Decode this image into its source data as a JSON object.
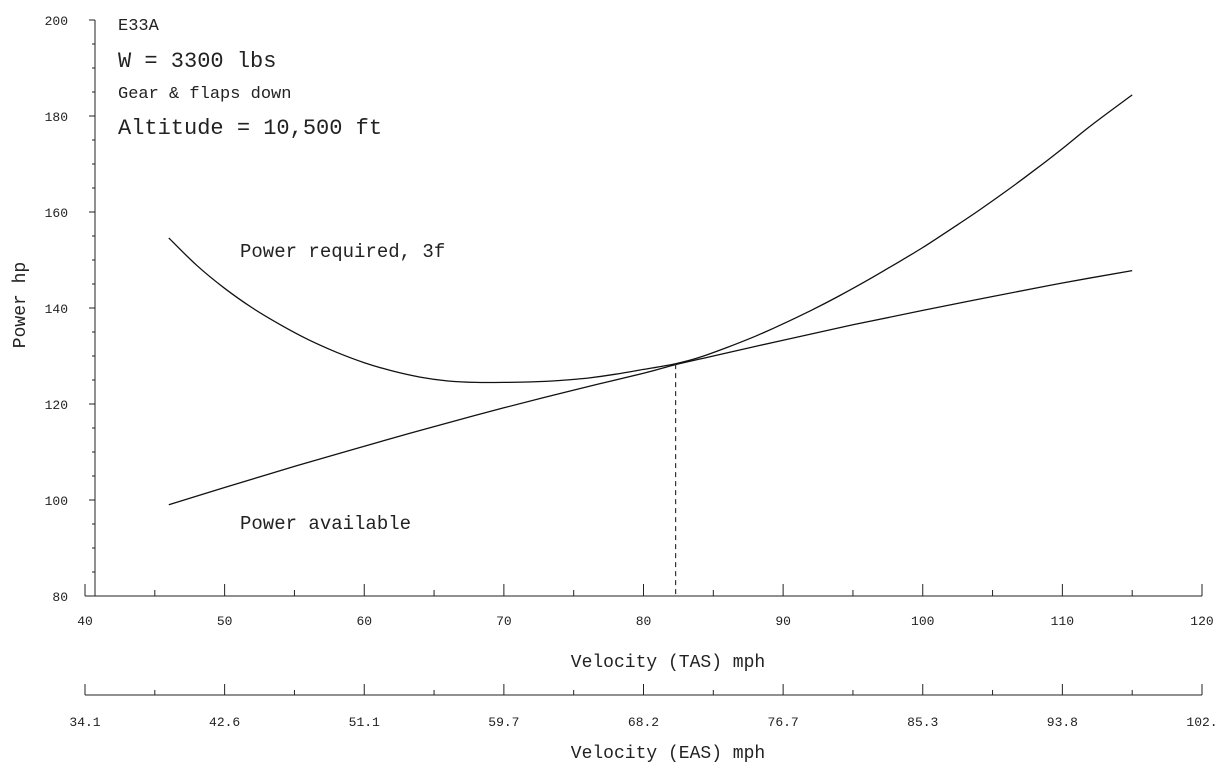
{
  "chart_data": {
    "type": "line",
    "title": "",
    "annotations": [
      "E33A",
      "W = 3300 lbs",
      "Gear & flaps down",
      "Altitude = 10,500 ft"
    ],
    "xlabel": "Velocity (TAS) mph",
    "x2label": "Velocity (EAS) mph",
    "ylabel": "Power hp",
    "xlim": [
      40,
      120
    ],
    "ylim": [
      80,
      200
    ],
    "x_ticks": [
      "40",
      "50",
      "60",
      "70",
      "80",
      "90",
      "100",
      "110",
      "120"
    ],
    "y_ticks": [
      "80",
      "100",
      "120",
      "140",
      "160",
      "180",
      "200"
    ],
    "x2_ticks": [
      "34.1",
      "42.6",
      "51.1",
      "59.7",
      "68.2",
      "76.7",
      "85.3",
      "93.8",
      "102."
    ],
    "grid": false,
    "series": [
      {
        "name": "Power required, 3f",
        "x": [
          46,
          48,
          50,
          52,
          54,
          56,
          58,
          60,
          62,
          64,
          66,
          68,
          70,
          72,
          74,
          76,
          78,
          80,
          82.3,
          84,
          86,
          88,
          90,
          92,
          94,
          96,
          98,
          100,
          102,
          104,
          106,
          108,
          110,
          112,
          115
        ],
        "y": [
          154.6,
          148.9,
          144.1,
          140.0,
          136.5,
          133.4,
          130.8,
          128.6,
          126.9,
          125.6,
          124.8,
          124.5,
          124.5,
          124.6,
          124.9,
          125.4,
          126.2,
          127.2,
          128.4,
          129.7,
          131.8,
          134.1,
          136.7,
          139.5,
          142.5,
          145.7,
          149.1,
          152.6,
          156.4,
          160.3,
          164.4,
          168.7,
          173.2,
          177.9,
          184.4
        ]
      },
      {
        "name": "Power available",
        "x": [
          46,
          50,
          55,
          60,
          65,
          70,
          75,
          80,
          82.3,
          85,
          90,
          95,
          100,
          105,
          110,
          115
        ],
        "y": [
          99.0,
          102.6,
          107.0,
          111.2,
          115.3,
          119.2,
          122.9,
          126.4,
          128.2,
          130.0,
          133.3,
          136.5,
          139.5,
          142.4,
          145.2,
          147.8
        ]
      }
    ],
    "intersection": {
      "x": 82.3,
      "y": 128.3
    },
    "curve_labels": {
      "required": "Power required, 3f",
      "available": "Power available"
    }
  }
}
